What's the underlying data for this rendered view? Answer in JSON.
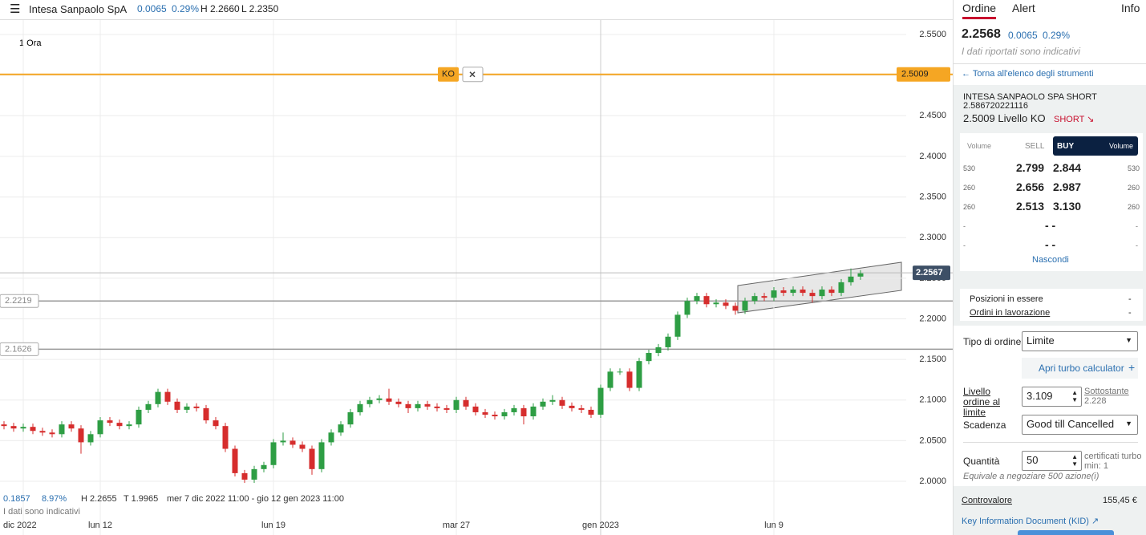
{
  "header": {
    "title": "Intesa Sanpaolo SpA",
    "change": "0.0065",
    "change_pct": "0.29%",
    "high": "H 2.2660",
    "low": "L 2.2350"
  },
  "chart_data": {
    "type": "candlestick",
    "interval": "1 Ora",
    "ko_label": "KO",
    "categories": [
      null,
      null,
      "dic 2022",
      null,
      null,
      null,
      null,
      null,
      null,
      null,
      "lun 12",
      null,
      null,
      null,
      null,
      null,
      null,
      null,
      null,
      null,
      null,
      null,
      null,
      null,
      null,
      null,
      null,
      null,
      "lun 19",
      null,
      null,
      null,
      null,
      null,
      null,
      null,
      null,
      null,
      null,
      null,
      null,
      null,
      null,
      null,
      null,
      null,
      null,
      "mar 27",
      null,
      null,
      null,
      null,
      null,
      null,
      null,
      null,
      null,
      null,
      null,
      null,
      null,
      null,
      "gen 2023",
      null,
      null,
      null,
      null,
      null,
      null,
      null,
      null,
      null,
      null,
      null,
      null,
      null,
      null,
      null,
      null,
      null,
      "lun 9",
      null,
      null,
      null,
      null,
      null,
      null,
      null,
      null,
      null
    ],
    "open": [
      2.07,
      2.068,
      2.065,
      2.067,
      2.062,
      2.06,
      2.058,
      2.07,
      2.065,
      2.048,
      2.058,
      2.075,
      2.072,
      2.068,
      2.07,
      2.088,
      2.095,
      2.11,
      2.098,
      2.088,
      2.092,
      2.09,
      2.075,
      2.068,
      2.04,
      2.01,
      2.002,
      2.015,
      2.02,
      2.048,
      2.05,
      2.045,
      2.04,
      2.015,
      2.048,
      2.06,
      2.07,
      2.085,
      2.095,
      2.1,
      2.102,
      2.098,
      2.095,
      2.09,
      2.095,
      2.092,
      2.09,
      2.088,
      2.1,
      2.092,
      2.085,
      2.082,
      2.08,
      2.085,
      2.09,
      2.08,
      2.092,
      2.098,
      2.1,
      2.093,
      2.09,
      2.088,
      2.082,
      2.115,
      2.135,
      2.135,
      2.115,
      2.148,
      2.158,
      2.165,
      2.178,
      2.205,
      2.222,
      2.228,
      2.218,
      2.22,
      2.216,
      2.21,
      2.222,
      2.228,
      2.226,
      2.235,
      2.232,
      2.236,
      2.232,
      2.228,
      2.236,
      2.232,
      2.245,
      2.252
    ],
    "high": [
      2.074,
      2.072,
      2.071,
      2.071,
      2.066,
      2.064,
      2.074,
      2.074,
      2.069,
      2.062,
      2.079,
      2.079,
      2.076,
      2.074,
      2.092,
      2.099,
      2.114,
      2.114,
      2.102,
      2.096,
      2.096,
      2.094,
      2.079,
      2.072,
      2.044,
      2.014,
      2.019,
      2.024,
      2.052,
      2.06,
      2.054,
      2.049,
      2.044,
      2.052,
      2.064,
      2.074,
      2.089,
      2.099,
      2.104,
      2.106,
      2.114,
      2.102,
      2.099,
      2.099,
      2.099,
      2.096,
      2.094,
      2.104,
      2.104,
      2.096,
      2.089,
      2.086,
      2.089,
      2.094,
      2.094,
      2.096,
      2.102,
      2.106,
      2.104,
      2.097,
      2.094,
      2.092,
      2.119,
      2.139,
      2.139,
      2.139,
      2.152,
      2.162,
      2.169,
      2.182,
      2.209,
      2.226,
      2.232,
      2.232,
      2.224,
      2.224,
      2.22,
      2.226,
      2.232,
      2.232,
      2.239,
      2.239,
      2.24,
      2.24,
      2.236,
      2.24,
      2.24,
      2.249,
      2.262,
      2.26
    ],
    "low": [
      2.064,
      2.061,
      2.061,
      2.058,
      2.056,
      2.054,
      2.054,
      2.061,
      2.034,
      2.044,
      2.054,
      2.068,
      2.064,
      2.064,
      2.066,
      2.084,
      2.091,
      2.094,
      2.084,
      2.084,
      2.086,
      2.071,
      2.064,
      2.036,
      2.006,
      1.998,
      1.998,
      2.011,
      2.016,
      2.044,
      2.041,
      2.036,
      2.008,
      2.011,
      2.044,
      2.056,
      2.066,
      2.081,
      2.091,
      2.096,
      2.094,
      2.091,
      2.084,
      2.086,
      2.088,
      2.086,
      2.084,
      2.084,
      2.088,
      2.081,
      2.078,
      2.076,
      2.076,
      2.081,
      2.07,
      2.076,
      2.088,
      2.094,
      2.089,
      2.086,
      2.084,
      2.078,
      2.078,
      2.111,
      2.131,
      2.111,
      2.111,
      2.144,
      2.154,
      2.161,
      2.174,
      2.201,
      2.218,
      2.214,
      2.214,
      2.212,
      2.205,
      2.206,
      2.218,
      2.222,
      2.222,
      2.228,
      2.228,
      2.228,
      2.22,
      2.224,
      2.228,
      2.228,
      2.241,
      2.248
    ],
    "close": [
      2.068,
      2.065,
      2.067,
      2.062,
      2.06,
      2.058,
      2.07,
      2.065,
      2.048,
      2.058,
      2.075,
      2.072,
      2.068,
      2.07,
      2.088,
      2.095,
      2.11,
      2.098,
      2.088,
      2.092,
      2.09,
      2.075,
      2.068,
      2.04,
      2.01,
      2.002,
      2.015,
      2.02,
      2.048,
      2.05,
      2.045,
      2.04,
      2.015,
      2.048,
      2.06,
      2.07,
      2.085,
      2.095,
      2.1,
      2.102,
      2.098,
      2.095,
      2.09,
      2.095,
      2.092,
      2.09,
      2.088,
      2.1,
      2.092,
      2.085,
      2.082,
      2.08,
      2.085,
      2.09,
      2.08,
      2.092,
      2.098,
      2.1,
      2.093,
      2.09,
      2.088,
      2.082,
      2.115,
      2.135,
      2.135,
      2.115,
      2.148,
      2.158,
      2.165,
      2.178,
      2.205,
      2.222,
      2.228,
      2.218,
      2.22,
      2.216,
      2.21,
      2.222,
      2.228,
      2.226,
      2.235,
      2.232,
      2.236,
      2.232,
      2.228,
      2.236,
      2.232,
      2.245,
      2.252,
      2.256
    ],
    "up_color": "#2e9e44",
    "down_color": "#d62d2d",
    "ylim": [
      1.9556,
      2.5678
    ],
    "yticks": [
      {
        "value": 2.0,
        "label": "2.0000"
      },
      {
        "value": 2.05,
        "label": "2.0500"
      },
      {
        "value": 2.1,
        "label": "2.1000"
      },
      {
        "value": 2.15,
        "label": "2.1500"
      },
      {
        "value": 2.2,
        "label": "2.2000"
      },
      {
        "value": 2.25,
        "label": "2.2500"
      },
      {
        "value": 2.3,
        "label": "2.3000"
      },
      {
        "value": 2.35,
        "label": "2.3500"
      },
      {
        "value": 2.4,
        "label": "2.4000"
      },
      {
        "value": 2.45,
        "label": "2.4500"
      },
      {
        "value": 2.5,
        "label": "2.5000"
      },
      {
        "value": 2.55,
        "label": "2.5500"
      }
    ],
    "grid": true,
    "ko_level": 2.5009,
    "last_price": 2.2567,
    "levels": [
      2.2219,
      2.1626
    ],
    "stats": [
      "0.1857",
      "8.97%",
      "H 2.2655",
      "T 1.9965",
      "mer 7 dic 2022 11:00 - gio 12 gen 2023 11:00"
    ],
    "note": "I dati sono indicativi"
  },
  "sidebar": {
    "tabs": [
      "Ordine",
      "Alert",
      "Info"
    ],
    "price": "2.2568",
    "change": "0.0065",
    "change_pct": "0.29%",
    "note": "I dati riportati sono indicativi",
    "back": "Torna all'elenco degli strumenti",
    "instrument": {
      "name": "INTESA SANPAOLO SPA SHORT",
      "code": "2.586720221116",
      "ko": "2.5009 Livello KO",
      "side": "SHORT ↘"
    },
    "book": {
      "header": [
        "Volume",
        "SELL",
        "BUY",
        "Volume"
      ],
      "rows": [
        [
          "530",
          "2.799",
          "2.844",
          "530"
        ],
        [
          "260",
          "2.656",
          "2.987",
          "260"
        ],
        [
          "260",
          "2.513",
          "3.130",
          "260"
        ],
        [
          "-",
          "- -",
          "-"
        ],
        [
          "-",
          "- -",
          "-"
        ]
      ],
      "hide": "Nascondi"
    },
    "positions": [
      [
        "Posizioni in essere",
        "-"
      ],
      [
        "Ordini in lavorazione",
        "-"
      ]
    ],
    "form": {
      "order_type_label": "Tipo di ordine",
      "order_type": "Limite",
      "turbo": "Apri turbo calculator",
      "turbo_icon": "+",
      "limit_label": "Livello ordine al limite",
      "limit": "3.109",
      "underlying_label": "Sottostante",
      "underlying": "2.228",
      "expiry_label": "Scadenza",
      "expiry": "Good till Cancelled",
      "qty_label": "Quantità",
      "qty": "50",
      "qty_unit": "certificati turbo",
      "qty_min": "min: 1",
      "equiv": "Equivale a negoziare 500 azione(i)"
    },
    "total_label": "Controvalore",
    "total": "155,45 €",
    "kid": "Key Information Document (KID)"
  }
}
